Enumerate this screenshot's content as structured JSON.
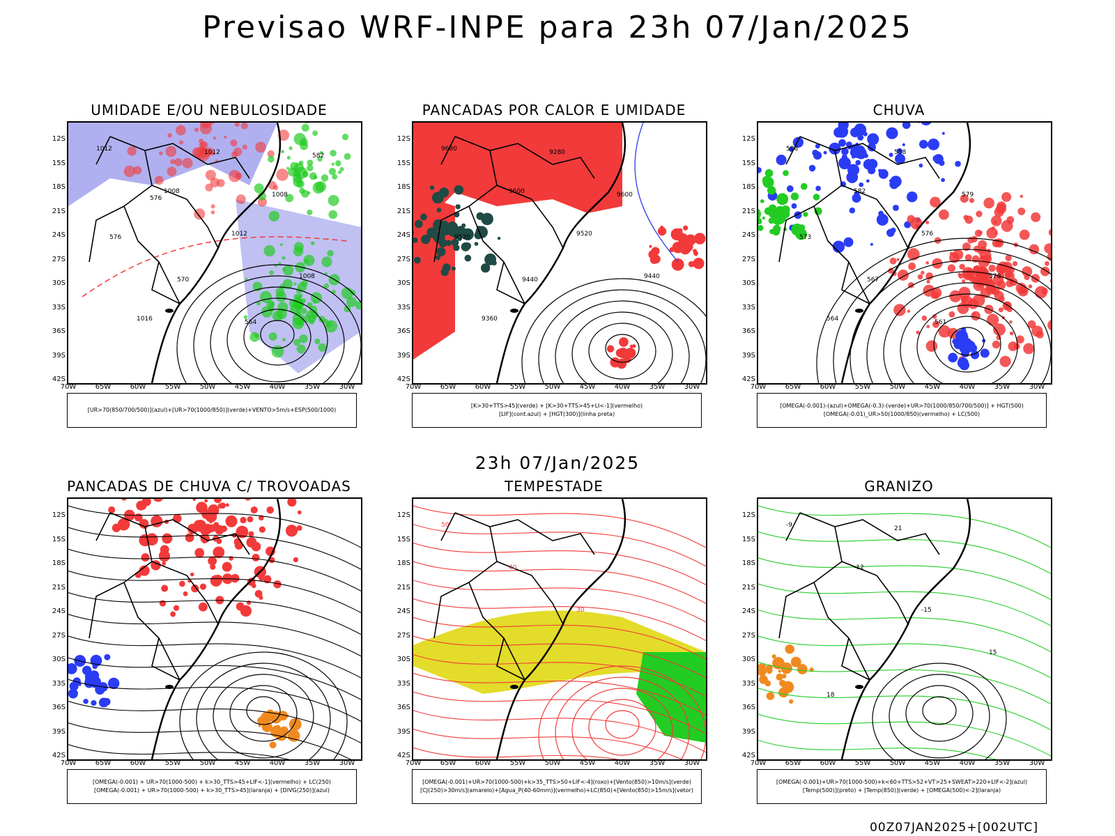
{
  "header": {
    "title": "Previsao WRF-INPE  para 23h 07/Jan/2025"
  },
  "middle": {
    "date": "23h 07/Jan/2025"
  },
  "footer": {
    "run": "00Z07JAN2025+[002UTC]"
  },
  "axes": {
    "lat": [
      "12S",
      "15S",
      "18S",
      "21S",
      "24S",
      "27S",
      "30S",
      "33S",
      "36S",
      "39S",
      "42S"
    ],
    "lon": [
      "70W",
      "65W",
      "60W",
      "55W",
      "50W",
      "45W",
      "40W",
      "35W",
      "30W"
    ]
  },
  "panels": [
    {
      "id": "umidade",
      "title": "UMIDADE E/OU NEBULOSIDADE",
      "legend": [
        "[UR>70(850/700/500)](azul)+[UR>70(1000/850)](verde)+VENTO>5m/s+ESP(500/1000)"
      ],
      "contour_labels": [
        "1012",
        "1008",
        "1012",
        "1008",
        "1016",
        "1012",
        "1008",
        "576",
        "570",
        "564",
        "582",
        "576"
      ]
    },
    {
      "id": "pancadas-calor",
      "title": "PANCADAS POR CALOR E UMIDADE",
      "legend": [
        "[K>30+TTS>45](verde) + [K>30+TTS>45+LI<-1](vermelho)",
        "[LIF](cont.azul) + [HGT(300)](linha preta)"
      ],
      "contour_labels": [
        "9680",
        "9600",
        "9520",
        "9440",
        "9360",
        "9280",
        "9600",
        "9520",
        "9440"
      ]
    },
    {
      "id": "chuva",
      "title": "CHUVA",
      "legend": [
        "[OMEGA(-0.001)-(azul)+OMEGA(-0.3)-(verde)+UR>70(1000/850/700/500)] + HGT(500)",
        "[OMEGA(-0.01)_UR>50(1000/850)(vermelho) + LC(500)"
      ],
      "contour_labels": [
        "588",
        "582",
        "576",
        "570",
        "564",
        "558",
        "579",
        "573",
        "567",
        "561"
      ]
    },
    {
      "id": "trovoadas",
      "title": "PANCADAS DE CHUVA C/ TROVOADAS",
      "legend": [
        "[OMEGA(-0.001) + UR>70(1000-500) + k>30_TTS>45+LIF<-1](vermelho) + LC(250)",
        "[OMEGA(-0.001) + UR>70(1000-500) + k>30_TTS>45](laranja) + [DIVG(250)](azul)"
      ],
      "contour_labels": []
    },
    {
      "id": "tempestade",
      "title": "TEMPESTADE",
      "legend": [
        "[OMEGA(-0.001)+UR>70(1000-500)+k>35_TTS>50+LIF<-4](roxo)+[Vento(850)>10m/s](verde)",
        "[CJ(250)>30m/s](amarelo)+[Agua_P(40-60mm)](vermelho)+LC(850)+[Vento(850)>15m/s](vetor)"
      ],
      "contour_labels": [
        "50",
        "40",
        "30"
      ]
    },
    {
      "id": "granizo",
      "title": "GRANIZO",
      "legend": [
        "[OMEGA(-0.001)+UR>70(1000-500)+k<60+TTS>52+VT>25+SWEAT>220+LIF<-2](azul)",
        "[Temp(500)](preto) + [Temp(850)](verde) + [OMEGA(500)<-2](laranja)"
      ],
      "contour_labels": [
        "-9",
        "-12",
        "-15",
        "15",
        "18",
        "21"
      ]
    }
  ],
  "colors": {
    "blue": "#2b3cf5",
    "green": "#22cc22",
    "red": "#f23a3a",
    "lavender": "#b0b0f0",
    "darkteal": "#1f4a45",
    "yellow": "#e3dc2a",
    "orange": "#f08a20"
  }
}
